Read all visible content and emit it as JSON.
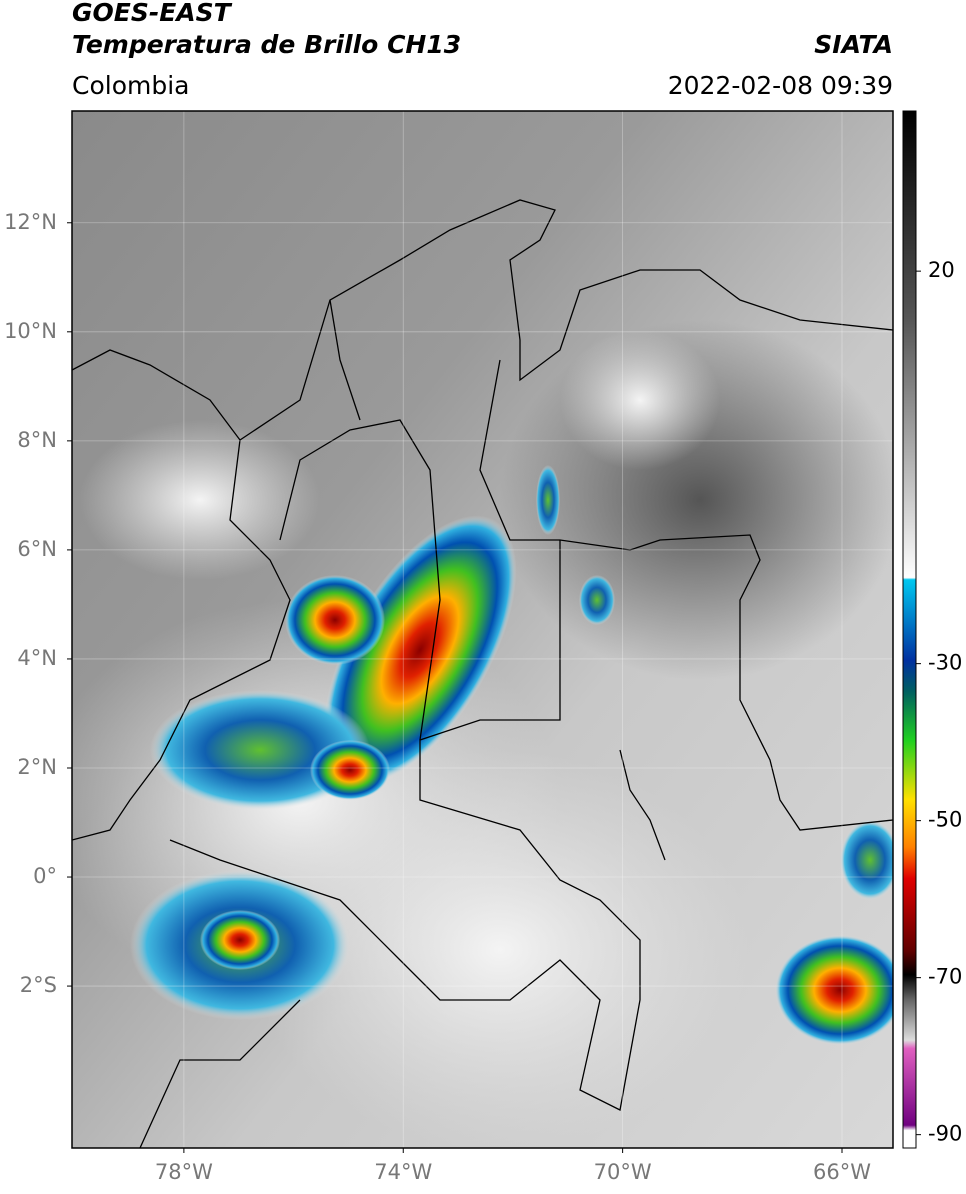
{
  "header": {
    "title": "GOES-EAST",
    "subtitle": "Temperatura de Brillo CH13",
    "source": "SIATA",
    "region": "Colombia",
    "datetime": "2022-02-08 09:39"
  },
  "map": {
    "lat_range": [
      -4.97,
      14.05
    ],
    "lon_range": [
      -80.04,
      -65.07
    ],
    "lat_ticks": [
      {
        "value": 12,
        "label": "12°N"
      },
      {
        "value": 10,
        "label": "10°N"
      },
      {
        "value": 8,
        "label": "8°N"
      },
      {
        "value": 6,
        "label": "6°N"
      },
      {
        "value": 4,
        "label": "4°N"
      },
      {
        "value": 2,
        "label": "2°N"
      },
      {
        "value": 0,
        "label": "0°"
      },
      {
        "value": -2,
        "label": "2°S"
      }
    ],
    "lon_ticks": [
      {
        "value": -78,
        "label": "78°W"
      },
      {
        "value": -74,
        "label": "74°W"
      },
      {
        "value": -70,
        "label": "70°W"
      },
      {
        "value": -66,
        "label": "66°W"
      }
    ]
  },
  "colorbar": {
    "range": [
      -91.7,
      40.4
    ],
    "ticks": [
      20,
      -30,
      -50,
      -70,
      -90
    ]
  }
}
